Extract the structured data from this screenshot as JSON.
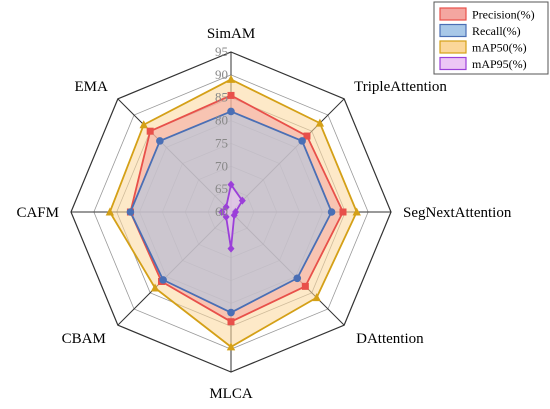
{
  "chart_data": {
    "type": "radar",
    "categories": [
      "SimAM",
      "TripleAttention",
      "SegNextAttention",
      "DAttention",
      "MLCA",
      "CBAM",
      "CAFM",
      "EMA"
    ],
    "radial_ticks": [
      "60",
      "65",
      "70",
      "75",
      "80",
      "85",
      "90",
      "95"
    ],
    "rlim": [
      60,
      95
    ],
    "grid": true,
    "legend_position": "top-right",
    "series": [
      {
        "name": "Precision(%)",
        "color": "#e8504a",
        "fill": "#f4a6a0",
        "marker": "square",
        "values": [
          85.5,
          83.5,
          84.5,
          83.0,
          84.0,
          81.5,
          82.0,
          85.0
        ]
      },
      {
        "name": "Recall(%)",
        "color": "#4a6fb5",
        "fill": "#a8c8e8",
        "marker": "circle",
        "values": [
          82.0,
          82.0,
          82.0,
          80.5,
          82.0,
          81.0,
          82.0,
          82.0
        ]
      },
      {
        "name": "mAP50(%)",
        "color": "#d4a017",
        "fill": "#fbd79a",
        "marker": "triangle",
        "values": [
          89.0,
          87.5,
          87.5,
          86.5,
          89.5,
          83.5,
          86.5,
          87.0
        ]
      },
      {
        "name": "mAP95(%)",
        "color": "#9b3fd9",
        "fill": "#ecc6f5",
        "marker": "diamond",
        "values": [
          66.0,
          63.5,
          61.0,
          61.0,
          68.0,
          61.5,
          62.0,
          61.5
        ]
      }
    ]
  }
}
